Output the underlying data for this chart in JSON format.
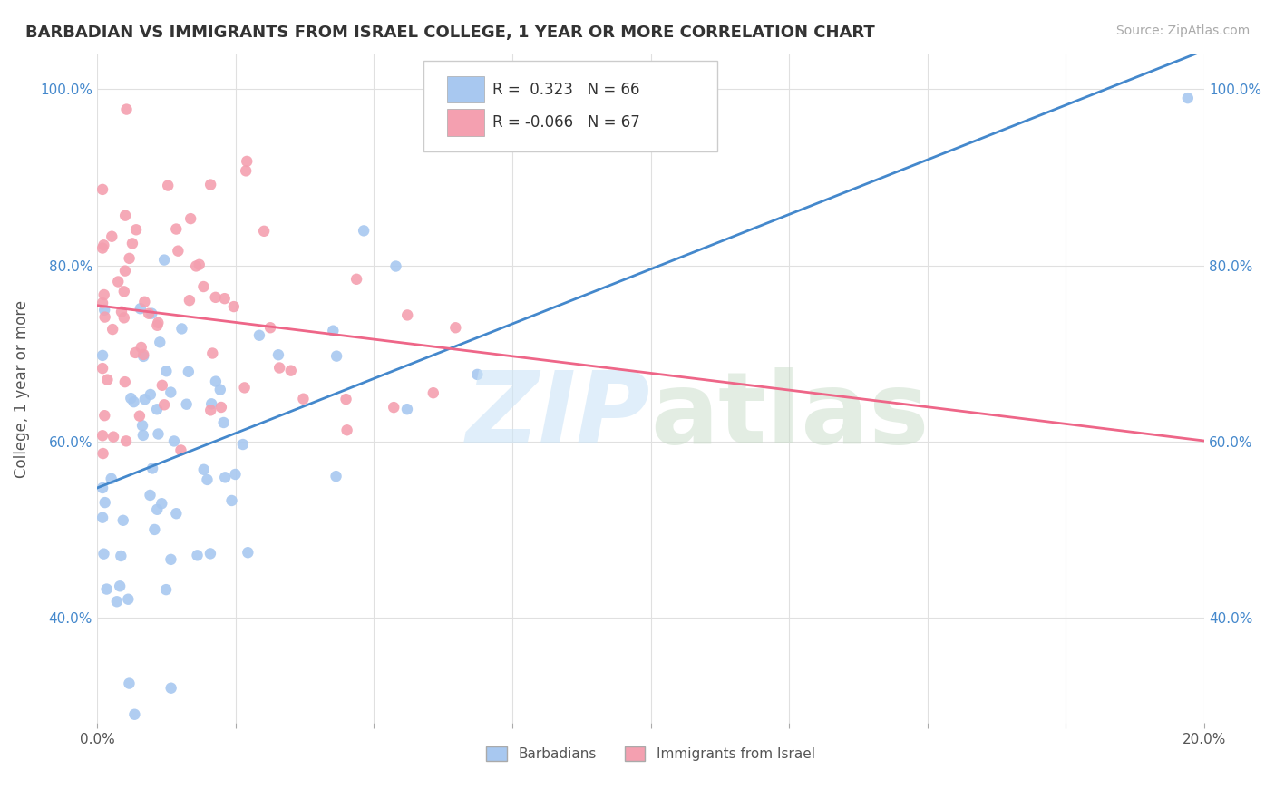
{
  "title": "BARBADIAN VS IMMIGRANTS FROM ISRAEL COLLEGE, 1 YEAR OR MORE CORRELATION CHART",
  "source": "Source: ZipAtlas.com",
  "ylabel": "College, 1 year or more",
  "xlim": [
    0.0,
    0.2
  ],
  "ylim": [
    0.28,
    1.04
  ],
  "yticks": [
    0.4,
    0.6,
    0.8,
    1.0
  ],
  "yticklabels": [
    "40.0%",
    "60.0%",
    "80.0%",
    "100.0%"
  ],
  "blue_color": "#a8c8f0",
  "pink_color": "#f4a0b0",
  "blue_line_color": "#4488cc",
  "pink_line_color": "#ee6688",
  "r_blue": 0.323,
  "n_blue": 66,
  "r_pink": -0.066,
  "n_pink": 67,
  "background_color": "#ffffff",
  "grid_color": "#e0e0e0",
  "legend_r_blue": "R =  0.323",
  "legend_n_blue": "N = 66",
  "legend_r_pink": "R = -0.066",
  "legend_n_pink": "N = 67",
  "legend_label_blue": "Barbadians",
  "legend_label_pink": "Immigrants from Israel"
}
